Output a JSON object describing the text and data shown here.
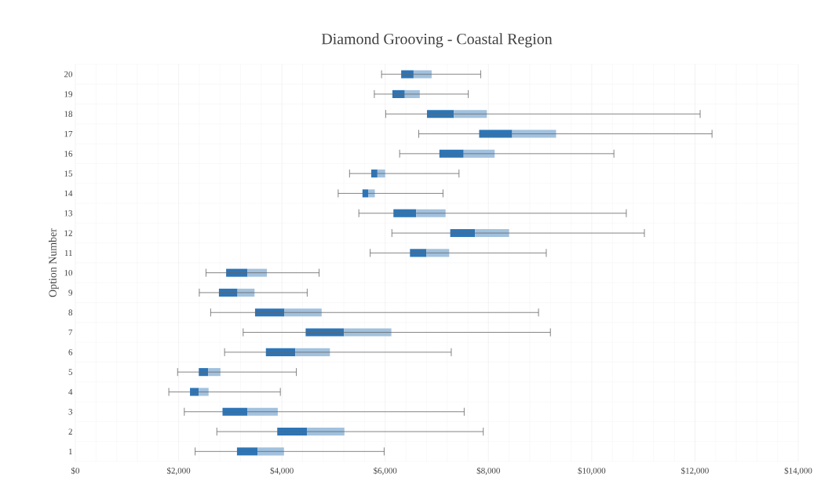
{
  "chart_data": {
    "type": "box",
    "orientation": "horizontal",
    "title": "Diamond Grooving - Coastal Region",
    "ylabel": "Option Number",
    "categories": [
      "20",
      "19",
      "18",
      "17",
      "16",
      "15",
      "14",
      "13",
      "12",
      "11",
      "10",
      "9",
      "8",
      "7",
      "6",
      "5",
      "4",
      "3",
      "2",
      "1"
    ],
    "series": [
      {
        "color": "#2e75b6",
        "boxes": [
          {
            "low": 5930,
            "q1": 6310,
            "median": 6550,
            "q3": 6900,
            "high": 7850
          },
          {
            "low": 5790,
            "q1": 6140,
            "median": 6380,
            "q3": 6670,
            "high": 7610
          },
          {
            "low": 6010,
            "q1": 6810,
            "median": 7330,
            "q3": 7970,
            "high": 12100
          },
          {
            "low": 6650,
            "q1": 7820,
            "median": 8460,
            "q3": 9310,
            "high": 12330
          },
          {
            "low": 6280,
            "q1": 7050,
            "median": 7520,
            "q3": 8120,
            "high": 10430
          },
          {
            "low": 5310,
            "q1": 5730,
            "median": 5850,
            "q3": 6000,
            "high": 7430
          },
          {
            "low": 5090,
            "q1": 5560,
            "median": 5670,
            "q3": 5800,
            "high": 7120
          },
          {
            "low": 5490,
            "q1": 6160,
            "median": 6600,
            "q3": 7170,
            "high": 10670
          },
          {
            "low": 6130,
            "q1": 7260,
            "median": 7740,
            "q3": 8400,
            "high": 11020
          },
          {
            "low": 5710,
            "q1": 6480,
            "median": 6800,
            "q3": 7240,
            "high": 9120
          },
          {
            "low": 2530,
            "q1": 2920,
            "median": 3330,
            "q3": 3710,
            "high": 4720
          },
          {
            "low": 2400,
            "q1": 2780,
            "median": 3140,
            "q3": 3470,
            "high": 4490
          },
          {
            "low": 2620,
            "q1": 3480,
            "median": 4050,
            "q3": 4770,
            "high": 8970
          },
          {
            "low": 3250,
            "q1": 4460,
            "median": 5200,
            "q3": 6120,
            "high": 9200
          },
          {
            "low": 2890,
            "q1": 3690,
            "median": 4260,
            "q3": 4930,
            "high": 7280
          },
          {
            "low": 1980,
            "q1": 2390,
            "median": 2570,
            "q3": 2810,
            "high": 4280
          },
          {
            "low": 1810,
            "q1": 2220,
            "median": 2390,
            "q3": 2580,
            "high": 3970
          },
          {
            "low": 2110,
            "q1": 2850,
            "median": 3330,
            "q3": 3920,
            "high": 7530
          },
          {
            "low": 2740,
            "q1": 3910,
            "median": 4490,
            "q3": 5210,
            "high": 7900
          },
          {
            "low": 2320,
            "q1": 3130,
            "median": 3530,
            "q3": 4040,
            "high": 5980
          }
        ]
      }
    ],
    "xlim": [
      0,
      14000
    ],
    "xticks": [
      {
        "value": 0,
        "label": "$0"
      },
      {
        "value": 2000,
        "label": "$2,000"
      },
      {
        "value": 4000,
        "label": "$4,000"
      },
      {
        "value": 6000,
        "label": "$6,000"
      },
      {
        "value": 8000,
        "label": "$8,000"
      },
      {
        "value": 10000,
        "label": "$10,000"
      },
      {
        "value": 12000,
        "label": "$12,000"
      },
      {
        "value": 14000,
        "label": "$14,000"
      }
    ],
    "grid": true
  }
}
